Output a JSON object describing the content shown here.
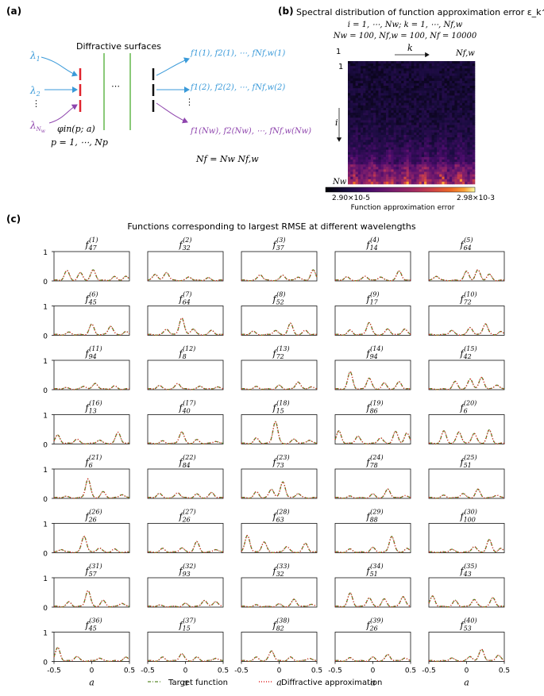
{
  "panel_a": {
    "label": "(a)",
    "surfaces_label": "Diffractive surfaces",
    "inputs": [
      "λ1",
      "λ2",
      "⋮",
      "λNw"
    ],
    "dots_between": "⋯",
    "outputs": [
      "f1(1), f2(1), ⋯, fNf,w(1)",
      "f1(2), f2(2), ⋯, fNf,w(2)",
      "⋮",
      "f1(Nw), f2(Nw), ⋯, fNf,w(Nw)"
    ],
    "phi_line": "φin(p; a)",
    "p_line": "p = 1, ⋯, Np",
    "nf_line": "Nf = Nw Nf,w",
    "colors": {
      "blue": "#3a9ad9",
      "purple": "#8e44ad",
      "red": "#e0242e",
      "green": "#7dc36a",
      "black": "#111111"
    }
  },
  "panel_b": {
    "label": "(b)",
    "title": "Spectral distribution of function approximation error ε_k^(i)",
    "line1": "i = 1, ⋯, Nw; k = 1, ⋯, Nf,w",
    "line2": "Nw = 100, Nf,w = 100, Nf = 10000",
    "top_left": "1",
    "top_right": "Nf,w",
    "k_label": "k",
    "left_top": "1",
    "i_label": "i",
    "left_bottom": "Nw",
    "cb_min": "2.90×10-5",
    "cb_max": "2.98×10-3",
    "cb_label": "Function approximation error"
  },
  "panel_c": {
    "label": "(c)",
    "title": "Functions corresponding to largest RMSE at different wavelengths",
    "xlabel": "a",
    "xticks": [
      "-0.5",
      "0",
      "0.5"
    ],
    "yticks": [
      "0",
      "1"
    ],
    "legend": [
      {
        "name": "Target function",
        "color": "#5a8a2a"
      },
      {
        "name": "Diffractive approximation",
        "color": "#e02020"
      }
    ]
  },
  "chart_data": {
    "type": "line",
    "xlim": [
      -0.5,
      0.5
    ],
    "ylim": [
      0,
      1
    ],
    "subplots": [
      {
        "i": 1,
        "k": 47,
        "peaks": [
          [
            -0.33,
            0.33
          ],
          [
            -0.15,
            0.25
          ],
          [
            0.02,
            0.35
          ],
          [
            0.3,
            0.12
          ],
          [
            0.45,
            0.13
          ]
        ]
      },
      {
        "i": 2,
        "k": 32,
        "peaks": [
          [
            -0.4,
            0.22
          ],
          [
            -0.25,
            0.28
          ],
          [
            0.05,
            0.12
          ],
          [
            0.3,
            0.08
          ]
        ]
      },
      {
        "i": 3,
        "k": 37,
        "peaks": [
          [
            -0.25,
            0.2
          ],
          [
            0.05,
            0.18
          ],
          [
            0.25,
            0.12
          ],
          [
            0.45,
            0.35
          ]
        ]
      },
      {
        "i": 4,
        "k": 14,
        "peaks": [
          [
            -0.35,
            0.12
          ],
          [
            -0.1,
            0.15
          ],
          [
            0.1,
            0.12
          ],
          [
            0.35,
            0.32
          ]
        ]
      },
      {
        "i": 5,
        "k": 64,
        "peaks": [
          [
            -0.4,
            0.15
          ],
          [
            0.0,
            0.3
          ],
          [
            0.15,
            0.35
          ],
          [
            0.3,
            0.2
          ]
        ]
      },
      {
        "i": 6,
        "k": 45,
        "peaks": [
          [
            -0.3,
            0.08
          ],
          [
            0.0,
            0.35
          ],
          [
            0.25,
            0.3
          ],
          [
            0.45,
            0.1
          ]
        ]
      },
      {
        "i": 7,
        "k": 64,
        "peaks": [
          [
            -0.25,
            0.2
          ],
          [
            -0.05,
            0.58
          ],
          [
            0.1,
            0.2
          ],
          [
            0.35,
            0.15
          ]
        ]
      },
      {
        "i": 8,
        "k": 52,
        "peaks": [
          [
            -0.35,
            0.12
          ],
          [
            -0.05,
            0.15
          ],
          [
            0.15,
            0.38
          ],
          [
            0.35,
            0.15
          ]
        ]
      },
      {
        "i": 9,
        "k": 17,
        "peaks": [
          [
            -0.3,
            0.15
          ],
          [
            -0.05,
            0.42
          ],
          [
            0.2,
            0.2
          ],
          [
            0.42,
            0.2
          ]
        ]
      },
      {
        "i": 10,
        "k": 72,
        "peaks": [
          [
            -0.2,
            0.15
          ],
          [
            0.05,
            0.25
          ],
          [
            0.25,
            0.38
          ],
          [
            0.45,
            0.1
          ]
        ]
      },
      {
        "i": 11,
        "k": 94,
        "peaks": [
          [
            -0.35,
            0.05
          ],
          [
            -0.1,
            0.1
          ],
          [
            0.05,
            0.2
          ],
          [
            0.3,
            0.1
          ]
        ]
      },
      {
        "i": 12,
        "k": 8,
        "peaks": [
          [
            -0.35,
            0.12
          ],
          [
            -0.1,
            0.2
          ],
          [
            0.2,
            0.1
          ],
          [
            0.42,
            0.08
          ]
        ]
      },
      {
        "i": 13,
        "k": 72,
        "peaks": [
          [
            -0.3,
            0.08
          ],
          [
            0.0,
            0.12
          ],
          [
            0.25,
            0.25
          ],
          [
            0.42,
            0.08
          ]
        ]
      },
      {
        "i": 14,
        "k": 94,
        "peaks": [
          [
            -0.3,
            0.58
          ],
          [
            -0.05,
            0.38
          ],
          [
            0.15,
            0.2
          ],
          [
            0.35,
            0.25
          ]
        ]
      },
      {
        "i": 15,
        "k": 42,
        "peaks": [
          [
            -0.15,
            0.25
          ],
          [
            0.05,
            0.35
          ],
          [
            0.2,
            0.4
          ],
          [
            0.4,
            0.15
          ]
        ]
      },
      {
        "i": 16,
        "k": 13,
        "peaks": [
          [
            -0.45,
            0.28
          ],
          [
            -0.2,
            0.15
          ],
          [
            0.1,
            0.12
          ],
          [
            0.35,
            0.38
          ]
        ]
      },
      {
        "i": 17,
        "k": 40,
        "peaks": [
          [
            -0.3,
            0.08
          ],
          [
            -0.05,
            0.4
          ],
          [
            0.15,
            0.12
          ],
          [
            0.4,
            0.08
          ]
        ]
      },
      {
        "i": 18,
        "k": 15,
        "peaks": [
          [
            -0.3,
            0.18
          ],
          [
            -0.05,
            0.75
          ],
          [
            0.2,
            0.15
          ],
          [
            0.4,
            0.12
          ]
        ]
      },
      {
        "i": 19,
        "k": 86,
        "peaks": [
          [
            -0.45,
            0.42
          ],
          [
            -0.2,
            0.25
          ],
          [
            0.1,
            0.2
          ],
          [
            0.3,
            0.4
          ],
          [
            0.45,
            0.35
          ]
        ]
      },
      {
        "i": 20,
        "k": 6,
        "peaks": [
          [
            -0.3,
            0.42
          ],
          [
            -0.1,
            0.4
          ],
          [
            0.1,
            0.35
          ],
          [
            0.3,
            0.45
          ]
        ]
      },
      {
        "i": 21,
        "k": 6,
        "peaks": [
          [
            -0.35,
            0.05
          ],
          [
            -0.05,
            0.65
          ],
          [
            0.15,
            0.2
          ],
          [
            0.4,
            0.12
          ]
        ]
      },
      {
        "i": 22,
        "k": 84,
        "peaks": [
          [
            -0.35,
            0.15
          ],
          [
            -0.1,
            0.18
          ],
          [
            0.15,
            0.12
          ],
          [
            0.35,
            0.18
          ]
        ]
      },
      {
        "i": 23,
        "k": 73,
        "peaks": [
          [
            -0.3,
            0.2
          ],
          [
            -0.1,
            0.3
          ],
          [
            0.05,
            0.55
          ],
          [
            0.25,
            0.15
          ]
        ]
      },
      {
        "i": 24,
        "k": 78,
        "peaks": [
          [
            -0.3,
            0.05
          ],
          [
            0.0,
            0.12
          ],
          [
            0.2,
            0.3
          ],
          [
            0.42,
            0.08
          ]
        ]
      },
      {
        "i": 25,
        "k": 51,
        "peaks": [
          [
            -0.3,
            0.08
          ],
          [
            -0.05,
            0.15
          ],
          [
            0.15,
            0.28
          ],
          [
            0.4,
            0.1
          ]
        ]
      },
      {
        "i": 26,
        "k": 26,
        "peaks": [
          [
            -0.4,
            0.1
          ],
          [
            -0.1,
            0.55
          ],
          [
            0.1,
            0.15
          ],
          [
            0.3,
            0.1
          ]
        ]
      },
      {
        "i": 27,
        "k": 26,
        "peaks": [
          [
            -0.3,
            0.12
          ],
          [
            -0.05,
            0.15
          ],
          [
            0.15,
            0.35
          ],
          [
            0.4,
            0.1
          ]
        ]
      },
      {
        "i": 28,
        "k": 63,
        "peaks": [
          [
            -0.42,
            0.58
          ],
          [
            -0.2,
            0.35
          ],
          [
            0.1,
            0.2
          ],
          [
            0.35,
            0.3
          ]
        ]
      },
      {
        "i": 29,
        "k": 88,
        "peaks": [
          [
            -0.3,
            0.1
          ],
          [
            0.0,
            0.15
          ],
          [
            0.25,
            0.55
          ],
          [
            0.45,
            0.12
          ]
        ]
      },
      {
        "i": 30,
        "k": 100,
        "peaks": [
          [
            -0.2,
            0.1
          ],
          [
            0.1,
            0.2
          ],
          [
            0.3,
            0.42
          ],
          [
            0.45,
            0.12
          ]
        ]
      },
      {
        "i": 31,
        "k": 57,
        "peaks": [
          [
            -0.3,
            0.15
          ],
          [
            -0.05,
            0.55
          ],
          [
            0.15,
            0.2
          ],
          [
            0.4,
            0.12
          ]
        ]
      },
      {
        "i": 32,
        "k": 93,
        "peaks": [
          [
            -0.35,
            0.05
          ],
          [
            0.0,
            0.1
          ],
          [
            0.25,
            0.22
          ],
          [
            0.4,
            0.18
          ]
        ]
      },
      {
        "i": 33,
        "k": 32,
        "peaks": [
          [
            -0.3,
            0.05
          ],
          [
            0.0,
            0.08
          ],
          [
            0.2,
            0.25
          ],
          [
            0.42,
            0.08
          ]
        ]
      },
      {
        "i": 34,
        "k": 51,
        "peaks": [
          [
            -0.3,
            0.45
          ],
          [
            -0.05,
            0.3
          ],
          [
            0.15,
            0.25
          ],
          [
            0.4,
            0.35
          ]
        ]
      },
      {
        "i": 35,
        "k": 43,
        "peaks": [
          [
            -0.45,
            0.35
          ],
          [
            -0.15,
            0.2
          ],
          [
            0.1,
            0.25
          ],
          [
            0.35,
            0.3
          ]
        ]
      },
      {
        "i": 36,
        "k": 45,
        "peaks": [
          [
            -0.45,
            0.45
          ],
          [
            -0.2,
            0.15
          ],
          [
            0.1,
            0.1
          ],
          [
            0.45,
            0.12
          ]
        ]
      },
      {
        "i": 37,
        "k": 15,
        "peaks": [
          [
            -0.3,
            0.12
          ],
          [
            -0.05,
            0.25
          ],
          [
            0.15,
            0.12
          ],
          [
            0.4,
            0.1
          ]
        ]
      },
      {
        "i": 38,
        "k": 82,
        "peaks": [
          [
            -0.3,
            0.12
          ],
          [
            -0.1,
            0.35
          ],
          [
            0.15,
            0.12
          ],
          [
            0.4,
            0.1
          ]
        ]
      },
      {
        "i": 39,
        "k": 26,
        "peaks": [
          [
            -0.3,
            0.1
          ],
          [
            0.0,
            0.12
          ],
          [
            0.2,
            0.22
          ],
          [
            0.42,
            0.1
          ]
        ]
      },
      {
        "i": 40,
        "k": 53,
        "peaks": [
          [
            -0.2,
            0.1
          ],
          [
            0.05,
            0.15
          ],
          [
            0.2,
            0.4
          ],
          [
            0.42,
            0.2
          ]
        ]
      }
    ]
  }
}
